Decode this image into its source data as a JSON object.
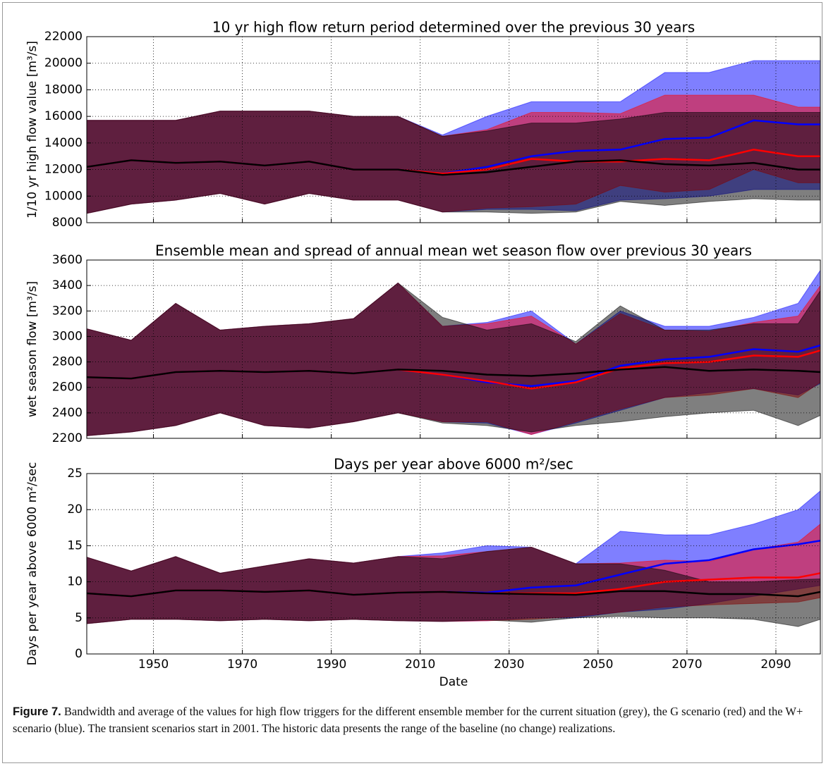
{
  "chart_data": [
    {
      "type": "band",
      "title": "10 yr high flow return period determined over the previous 30 years",
      "ylabel": "1/10 yr high flow value [m³/s]",
      "x": [
        1935,
        1945,
        1955,
        1965,
        1975,
        1985,
        1995,
        2005,
        2015,
        2025,
        2035,
        2045,
        2055,
        2065,
        2075,
        2085,
        2095,
        2100
      ],
      "xlim": [
        1935,
        2100
      ],
      "xticks": [
        1950,
        1970,
        1990,
        2010,
        2030,
        2050,
        2070,
        2090
      ],
      "ylim": [
        8000,
        22000
      ],
      "yticks": [
        8000,
        10000,
        12000,
        14000,
        16000,
        18000,
        20000,
        22000
      ],
      "grid": true,
      "alpha": 0.5,
      "series": [
        {
          "color": "#0000ff",
          "lower": [
            8700,
            9400,
            9700,
            10200,
            9400,
            10200,
            9700,
            9700,
            8800,
            9000,
            9000,
            8900,
            9700,
            9800,
            10000,
            10500,
            10500,
            10500
          ],
          "mean": [
            12200,
            12700,
            12500,
            12600,
            12300,
            12600,
            12000,
            12000,
            11700,
            12200,
            13000,
            13400,
            13500,
            14300,
            14400,
            15700,
            15400,
            15400
          ],
          "upper": [
            15700,
            15700,
            15700,
            16400,
            16400,
            16400,
            16000,
            16000,
            14600,
            16000,
            17100,
            17100,
            17100,
            19300,
            19300,
            20200,
            20200,
            20200
          ]
        },
        {
          "color": "#ff0000",
          "lower": [
            8700,
            9400,
            9700,
            10200,
            9400,
            10200,
            9700,
            9700,
            8800,
            9100,
            9200,
            9400,
            10800,
            10300,
            10500,
            12000,
            11000,
            11000
          ],
          "mean": [
            12200,
            12700,
            12500,
            12600,
            12300,
            12600,
            12000,
            12000,
            11700,
            12000,
            12800,
            12600,
            12600,
            12800,
            12700,
            13500,
            13000,
            13000
          ],
          "upper": [
            15700,
            15700,
            15700,
            16400,
            16400,
            16400,
            16000,
            16000,
            14500,
            15000,
            16300,
            16300,
            16200,
            17600,
            17600,
            17600,
            16700,
            16700
          ]
        },
        {
          "color": "#000000",
          "lower": [
            8700,
            9400,
            9700,
            10200,
            9400,
            10200,
            9700,
            9700,
            8800,
            8800,
            8700,
            8800,
            9600,
            9300,
            9600,
            9800,
            9700,
            9700
          ],
          "mean": [
            12200,
            12700,
            12500,
            12600,
            12300,
            12600,
            12000,
            12000,
            11600,
            11800,
            12200,
            12600,
            12700,
            12400,
            12300,
            12500,
            12000,
            12000
          ],
          "upper": [
            15700,
            15700,
            15700,
            16400,
            16400,
            16400,
            16000,
            16000,
            14500,
            14900,
            15500,
            15500,
            15800,
            16300,
            16300,
            16300,
            16300,
            16300
          ]
        }
      ]
    },
    {
      "type": "band",
      "title": "Ensemble mean and spread of annual mean wet season flow over previous 30 years",
      "ylabel": "wet season flow [m³/s]",
      "x": [
        1935,
        1945,
        1955,
        1965,
        1975,
        1985,
        1995,
        2005,
        2015,
        2025,
        2035,
        2045,
        2055,
        2065,
        2075,
        2085,
        2095,
        2100
      ],
      "xlim": [
        1935,
        2100
      ],
      "xticks": [
        1950,
        1970,
        1990,
        2010,
        2030,
        2050,
        2070,
        2090
      ],
      "ylim": [
        2200,
        3600
      ],
      "yticks": [
        2200,
        2400,
        2600,
        2800,
        3000,
        3200,
        3400,
        3600
      ],
      "grid": true,
      "alpha": 0.5,
      "series": [
        {
          "color": "#0000ff",
          "lower": [
            2220,
            2250,
            2300,
            2400,
            2300,
            2280,
            2330,
            2400,
            2330,
            2320,
            2230,
            2320,
            2420,
            2520,
            2560,
            2590,
            2540,
            2630
          ],
          "mean": [
            2680,
            2670,
            2720,
            2730,
            2720,
            2730,
            2710,
            2740,
            2700,
            2640,
            2610,
            2650,
            2770,
            2820,
            2840,
            2900,
            2880,
            2930
          ],
          "upper": [
            3060,
            2970,
            3260,
            3050,
            3080,
            3100,
            3140,
            3420,
            3080,
            3110,
            3200,
            2940,
            3200,
            3080,
            3080,
            3150,
            3260,
            3520
          ]
        },
        {
          "color": "#ff0000",
          "lower": [
            2220,
            2250,
            2300,
            2400,
            2300,
            2280,
            2330,
            2400,
            2330,
            2330,
            2230,
            2330,
            2430,
            2520,
            2540,
            2590,
            2520,
            2640
          ],
          "mean": [
            2680,
            2670,
            2720,
            2730,
            2720,
            2730,
            2710,
            2740,
            2700,
            2650,
            2590,
            2640,
            2750,
            2790,
            2800,
            2850,
            2840,
            2890
          ],
          "upper": [
            3060,
            2970,
            3260,
            3050,
            3080,
            3100,
            3140,
            3420,
            3080,
            3100,
            3160,
            2940,
            3180,
            3050,
            3040,
            3110,
            3160,
            3400
          ]
        },
        {
          "color": "#000000",
          "lower": [
            2220,
            2250,
            2300,
            2400,
            2300,
            2280,
            2330,
            2400,
            2320,
            2300,
            2250,
            2300,
            2330,
            2370,
            2400,
            2420,
            2300,
            2380
          ],
          "mean": [
            2680,
            2670,
            2720,
            2730,
            2720,
            2730,
            2710,
            2740,
            2730,
            2700,
            2690,
            2710,
            2740,
            2760,
            2730,
            2740,
            2730,
            2720
          ],
          "upper": [
            3060,
            2970,
            3260,
            3050,
            3080,
            3100,
            3140,
            3420,
            3150,
            3050,
            3100,
            2960,
            3240,
            3050,
            3050,
            3100,
            3100,
            3360
          ]
        }
      ]
    },
    {
      "type": "band",
      "title": "Days per year above 6000 m²/sec",
      "ylabel": "Days per year above 6000 m²/sec",
      "xlabel": "Date",
      "x": [
        1935,
        1945,
        1955,
        1965,
        1975,
        1985,
        1995,
        2005,
        2015,
        2025,
        2035,
        2045,
        2055,
        2065,
        2075,
        2085,
        2095,
        2100
      ],
      "xlim": [
        1935,
        2100
      ],
      "xticks": [
        1950,
        1970,
        1990,
        2010,
        2030,
        2050,
        2070,
        2090
      ],
      "ylim": [
        0,
        25
      ],
      "yticks": [
        0,
        5,
        10,
        15,
        20,
        25
      ],
      "grid": true,
      "alpha": 0.5,
      "series": [
        {
          "color": "#0000ff",
          "lower": [
            4.2,
            4.8,
            4.8,
            4.6,
            4.8,
            4.6,
            4.8,
            4.6,
            4.5,
            4.6,
            5.0,
            5.0,
            5.8,
            6.2,
            7.0,
            8.0,
            9.0,
            9.5
          ],
          "mean": [
            8.4,
            8.0,
            8.8,
            8.8,
            8.6,
            8.8,
            8.2,
            8.5,
            8.6,
            8.5,
            9.2,
            9.5,
            11.0,
            12.5,
            13.0,
            14.5,
            15.2,
            15.7
          ],
          "upper": [
            13.4,
            11.5,
            13.5,
            11.2,
            12.2,
            13.2,
            12.6,
            13.5,
            14.0,
            15.0,
            14.8,
            12.5,
            17.0,
            16.5,
            16.5,
            18.0,
            20.0,
            22.6
          ]
        },
        {
          "color": "#ff0000",
          "lower": [
            4.2,
            4.8,
            4.8,
            4.6,
            4.8,
            4.6,
            4.8,
            4.6,
            4.5,
            4.6,
            4.8,
            5.2,
            5.8,
            6.5,
            6.8,
            7.0,
            7.2,
            7.8
          ],
          "mean": [
            8.4,
            8.0,
            8.8,
            8.8,
            8.6,
            8.8,
            8.2,
            8.5,
            8.6,
            8.4,
            8.4,
            8.4,
            9.0,
            10.0,
            10.3,
            10.6,
            10.6,
            11.2
          ],
          "upper": [
            13.4,
            11.5,
            13.5,
            11.2,
            12.2,
            13.2,
            12.6,
            13.5,
            13.6,
            14.2,
            14.8,
            12.5,
            12.6,
            13.0,
            12.8,
            14.5,
            15.5,
            18.0
          ]
        },
        {
          "color": "#000000",
          "lower": [
            4.2,
            4.8,
            4.8,
            4.6,
            4.8,
            4.6,
            4.8,
            4.6,
            4.5,
            4.7,
            4.4,
            5.0,
            5.2,
            5.0,
            5.0,
            4.8,
            3.8,
            4.8
          ],
          "mean": [
            8.4,
            8.0,
            8.8,
            8.8,
            8.6,
            8.8,
            8.2,
            8.5,
            8.6,
            8.4,
            8.3,
            8.2,
            8.7,
            8.7,
            8.3,
            8.3,
            8.0,
            8.6
          ],
          "upper": [
            13.4,
            11.5,
            13.5,
            11.2,
            12.2,
            13.2,
            12.6,
            13.5,
            13.2,
            14.2,
            14.8,
            12.5,
            12.5,
            11.6,
            10.0,
            10.0,
            10.3,
            10.4
          ]
        }
      ]
    }
  ],
  "caption": {
    "label": "Figure 7.",
    "text": "Bandwidth and average of the values for high flow triggers for the different ensemble member for the current situation (grey), the G scenario (red) and the W+ scenario (blue). The transient scenarios start in 2001. The historic data presents the range of the baseline (no change) realizations."
  }
}
